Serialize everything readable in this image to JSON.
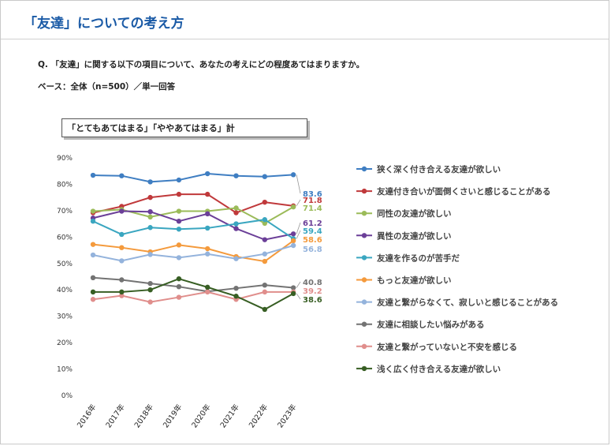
{
  "header": {
    "title": "「友達」についての考え方"
  },
  "question": "Q. 「友達」に関する以下の項目について、あなたの考えにどの程度あてはまりますか。",
  "base": "ベース：全体（n=500）／単一回答",
  "chart_data": {
    "type": "line",
    "title": "「とてもあてはまる」「ややあてはまる」計",
    "x": [
      "2016年",
      "2017年",
      "2018年",
      "2019年",
      "2020年",
      "2021年",
      "2022年",
      "2023年"
    ],
    "yticks": [
      "0%",
      "10%",
      "20%",
      "30%",
      "40%",
      "50%",
      "60%",
      "70%",
      "80%",
      "90%"
    ],
    "ylim": [
      0,
      90
    ],
    "grid": false,
    "legend": "right",
    "series": [
      {
        "name": "狭く深く付き合える友達が欲しい",
        "color": "#3f7ec2",
        "values": [
          83.4,
          83.2,
          80.9,
          81.6,
          84.0,
          83.2,
          82.9,
          83.6
        ],
        "label": "83.6"
      },
      {
        "name": "友達付き合いが面倒くさいと感じることがある",
        "color": "#c0393b",
        "values": [
          69.2,
          71.6,
          75.0,
          76.2,
          76.2,
          69.2,
          73.2,
          71.8
        ],
        "label": "71.8"
      },
      {
        "name": "同性の友達が欲しい",
        "color": "#9bbb59",
        "values": [
          69.8,
          70.4,
          67.6,
          69.8,
          69.8,
          71.0,
          65.2,
          71.4
        ],
        "label": "71.4"
      },
      {
        "name": "異性の友達が欲しい",
        "color": "#6b3f98",
        "values": [
          67.2,
          69.8,
          69.6,
          66.0,
          68.8,
          63.2,
          59.0,
          61.2
        ],
        "label": "61.2"
      },
      {
        "name": "友達を作るのが苦手だ",
        "color": "#3aa6c0",
        "values": [
          66.0,
          61.0,
          63.6,
          63.0,
          63.4,
          65.0,
          66.6,
          59.4
        ],
        "label": "59.4"
      },
      {
        "name": "もっと友達が欲しい",
        "color": "#f49a3c",
        "values": [
          57.2,
          56.0,
          54.4,
          57.0,
          55.6,
          52.6,
          50.8,
          58.6
        ],
        "label": "58.6"
      },
      {
        "name": "友達と繋がらなくて、寂しいと感じることがある",
        "color": "#94b3dc",
        "values": [
          53.2,
          51.0,
          53.4,
          52.2,
          53.6,
          51.8,
          53.6,
          56.8
        ],
        "label": "56.8"
      },
      {
        "name": "友達に相談したい悩みがある",
        "color": "#737373",
        "values": [
          44.6,
          43.8,
          42.4,
          41.2,
          39.4,
          40.6,
          41.8,
          40.8
        ],
        "label": "40.8"
      },
      {
        "name": "友達と繋がっていないと不安を感じる",
        "color": "#e08e8c",
        "values": [
          36.4,
          37.8,
          35.4,
          37.2,
          39.2,
          36.4,
          39.2,
          39.2
        ],
        "label": "39.2"
      },
      {
        "name": "浅く広く付き合える友達が欲しい",
        "color": "#375e23",
        "values": [
          39.2,
          39.2,
          40.0,
          44.2,
          41.0,
          37.6,
          32.6,
          38.6
        ],
        "label": "38.6"
      }
    ]
  }
}
